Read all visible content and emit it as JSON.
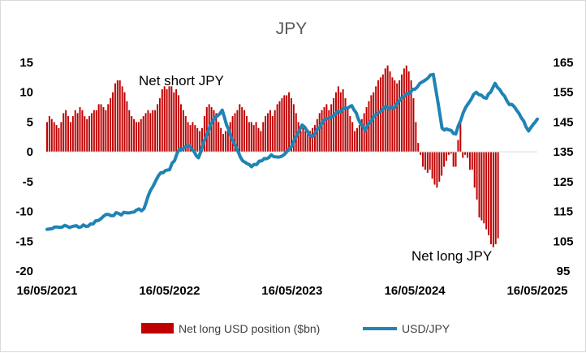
{
  "chart_data": {
    "type": "bar+line",
    "title": "JPY",
    "x_ticks": [
      "16/05/2021",
      "16/05/2022",
      "16/05/2023",
      "16/05/2024",
      "16/05/2025"
    ],
    "y_left": {
      "ticks": [
        15,
        10,
        5,
        0,
        -5,
        -10,
        -15,
        -20
      ],
      "range": [
        -20,
        15
      ]
    },
    "y_right": {
      "ticks": [
        165,
        155,
        145,
        135,
        125,
        115,
        105,
        95
      ],
      "range": [
        95,
        165
      ]
    },
    "annotations": [
      "Net short JPY",
      "Net long JPY"
    ],
    "colors": {
      "bars": "#c00000",
      "line": "#1f84b4"
    },
    "series": [
      {
        "name": "Net long USD position ($bn)",
        "axis": "left",
        "type": "bar",
        "start": "2021-05-16",
        "interval_days": 7,
        "values": [
          5,
          6,
          5.5,
          5,
          4.5,
          4,
          5,
          6.5,
          7,
          6,
          5,
          6,
          7,
          6.5,
          7.5,
          7,
          6,
          5.5,
          6,
          6.5,
          7,
          7,
          8,
          8,
          7.5,
          7,
          8,
          9,
          10,
          11.5,
          12,
          12,
          11,
          10,
          8.5,
          7,
          6,
          5.5,
          5,
          5,
          5.5,
          6,
          6.5,
          7,
          6.5,
          7,
          7,
          8,
          9,
          10.5,
          11,
          10.5,
          11,
          11,
          10,
          10.5,
          9.5,
          8,
          7,
          6,
          5,
          4.5,
          5,
          4.5,
          4,
          3.5,
          4,
          6,
          7.5,
          8,
          7.5,
          7,
          6.5,
          5,
          4,
          3,
          3.5,
          4,
          5,
          6,
          6.5,
          7,
          8,
          7.5,
          7,
          6,
          5,
          5,
          4.5,
          5,
          4,
          3.5,
          5,
          6,
          6.5,
          7,
          6,
          7,
          8,
          8.5,
          9,
          9.5,
          9.5,
          10,
          9,
          8,
          6.5,
          5,
          3.5,
          4,
          3.5,
          3,
          3.5,
          4,
          4.5,
          5.5,
          6.5,
          7,
          7.5,
          8,
          7,
          8,
          9,
          10,
          11,
          10,
          10.5,
          9,
          7.5,
          6,
          5,
          3.5,
          4,
          4.5,
          5.5,
          6.5,
          7.5,
          8.5,
          9.5,
          10,
          11,
          12,
          12.5,
          13,
          14,
          14.5,
          13.5,
          12.5,
          12,
          11.5,
          12,
          13,
          14,
          14.5,
          13.5,
          12,
          9,
          5,
          1.5,
          -0.5,
          -2.5,
          -3,
          -3.5,
          -3,
          -4.5,
          -5.5,
          -6,
          -5,
          -4,
          -2.5,
          -1.5,
          -0.5,
          -0.3,
          -2.5,
          -2.5,
          2,
          5,
          -1,
          -0.5,
          -1,
          -3,
          -3,
          -6,
          -8,
          -11,
          -11.5,
          -12,
          -13,
          -14,
          -15.5,
          -16,
          -15.5,
          -14.5
        ]
      },
      {
        "name": "USD/JPY",
        "axis": "right",
        "type": "line",
        "dates": [
          "2021-05-16",
          "2021-07-15",
          "2021-09-15",
          "2021-11-15",
          "2022-01-15",
          "2022-03-01",
          "2022-03-20",
          "2022-04-20",
          "2022-05-16",
          "2022-06-15",
          "2022-07-15",
          "2022-08-10",
          "2022-09-15",
          "2022-10-20",
          "2022-11-15",
          "2022-12-20",
          "2023-01-15",
          "2023-02-15",
          "2023-03-15",
          "2023-04-15",
          "2023-05-16",
          "2023-06-15",
          "2023-07-15",
          "2023-08-15",
          "2023-09-15",
          "2023-10-15",
          "2023-11-10",
          "2023-12-20",
          "2024-01-15",
          "2024-02-15",
          "2024-03-15",
          "2024-04-20",
          "2024-05-16",
          "2024-06-15",
          "2024-07-10",
          "2024-08-05",
          "2024-09-15",
          "2024-10-15",
          "2024-11-15",
          "2024-12-15",
          "2025-01-10",
          "2025-02-15",
          "2025-03-15",
          "2025-04-20",
          "2025-05-16"
        ],
        "values": [
          109,
          110,
          110,
          114,
          114.5,
          116,
          122,
          128,
          129,
          136,
          137,
          133,
          144,
          149,
          140,
          132,
          130,
          132,
          134,
          133.5,
          137,
          144,
          140,
          145,
          147,
          149.5,
          150.5,
          142,
          147,
          150,
          149.5,
          154.5,
          156,
          159,
          161,
          143,
          141,
          150,
          155,
          153,
          158,
          152,
          149,
          142,
          146
        ]
      }
    ]
  }
}
